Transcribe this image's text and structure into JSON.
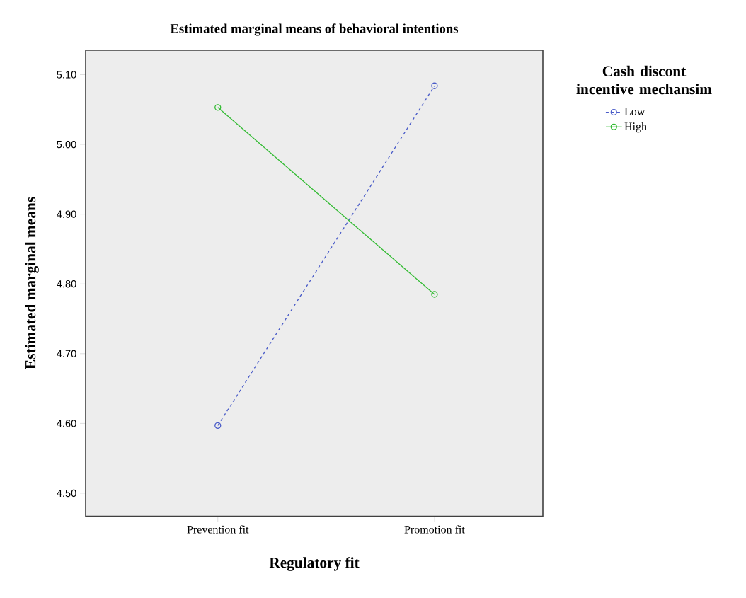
{
  "chart_data": {
    "type": "line",
    "title": "Estimated marginal means of behavioral intentions",
    "xlabel": "Regulatory fit",
    "ylabel": "Estimated marginal means",
    "legend_title": "Cash discont incentive mechansim",
    "categories": [
      "Prevention fit",
      "Promotion fit"
    ],
    "series": [
      {
        "name": "Low",
        "color": "#4a5cc8",
        "line_style": "dashed",
        "values": [
          4.597,
          5.084
        ]
      },
      {
        "name": "High",
        "color": "#33bb33",
        "line_style": "solid",
        "values": [
          5.053,
          4.785
        ]
      }
    ],
    "ylim": [
      4.467,
      5.135
    ],
    "yticks": [
      {
        "value": 4.5,
        "label": "4.50"
      },
      {
        "value": 4.6,
        "label": "4.60"
      },
      {
        "value": 4.7,
        "label": "4.70"
      },
      {
        "value": 4.8,
        "label": "4.80"
      },
      {
        "value": 4.9,
        "label": "4.90"
      },
      {
        "value": 5.0,
        "label": "5.00"
      },
      {
        "value": 5.1,
        "label": "5.10"
      }
    ],
    "marker": "circle",
    "legend": "right",
    "grid": false
  }
}
